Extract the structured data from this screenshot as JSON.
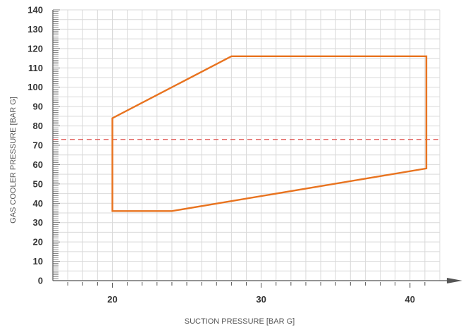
{
  "chart_data": {
    "type": "line",
    "title": "",
    "xlabel": "SUCTION PRESSURE [BAR G]",
    "ylabel": "GAS COOLER PRESSURE [BAR G]",
    "xlim": [
      16,
      42
    ],
    "ylim": [
      0,
      140
    ],
    "x_ticks": [
      20,
      30,
      40
    ],
    "y_ticks": [
      0,
      10,
      20,
      30,
      40,
      50,
      60,
      70,
      80,
      90,
      100,
      110,
      120,
      130,
      140
    ],
    "grid": true,
    "legend": "none",
    "series": [
      {
        "role": "operating-envelope",
        "color": "#E8731F",
        "closed": true,
        "x": [
          20,
          20,
          28,
          41.1,
          41.1,
          24,
          20
        ],
        "y": [
          36,
          84,
          116,
          116,
          58,
          36,
          36
        ]
      }
    ],
    "reference_lines": [
      {
        "axis": "y",
        "value": 73,
        "style": "dashed",
        "color": "#E0524F"
      }
    ],
    "colors": {
      "grid": "#D9D9D9",
      "axis": "#555555",
      "text": "#333333"
    }
  }
}
